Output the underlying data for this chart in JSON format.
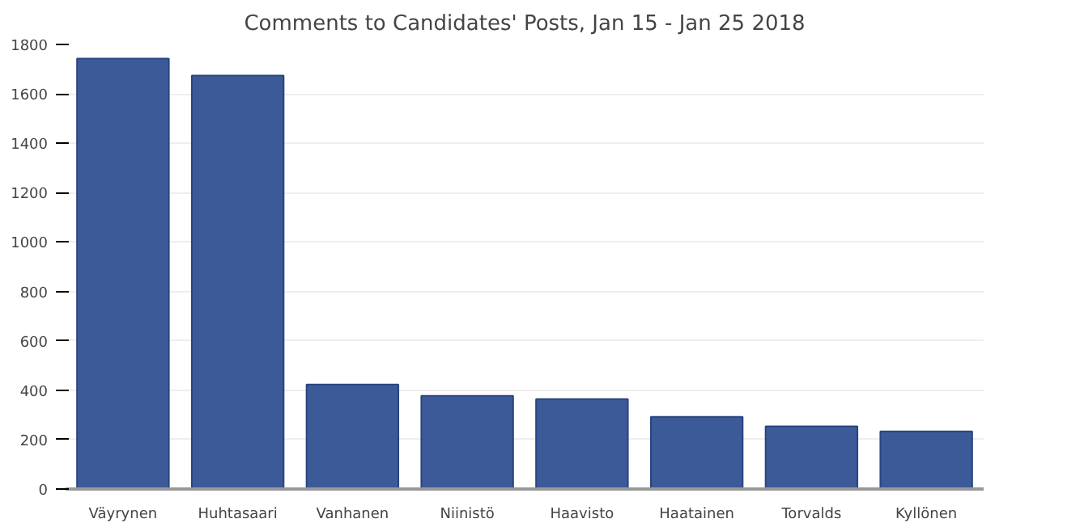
{
  "chart_data": {
    "type": "bar",
    "title": "Comments to Candidates' Posts, Jan 15 - Jan 25 2018",
    "categories": [
      "Väyrynen",
      "Huhtasaari",
      "Vanhanen",
      "Niinistö",
      "Haavisto",
      "Haatainen",
      "Torvalds",
      "Kyllönen"
    ],
    "values": [
      1743,
      1674,
      423,
      377,
      364,
      292,
      254,
      233
    ],
    "color": "#3d5a98",
    "ylim": [
      0,
      1800
    ],
    "yticks": [
      0,
      200,
      400,
      600,
      800,
      1000,
      1200,
      1400,
      1600,
      1800
    ],
    "grid": "y"
  }
}
